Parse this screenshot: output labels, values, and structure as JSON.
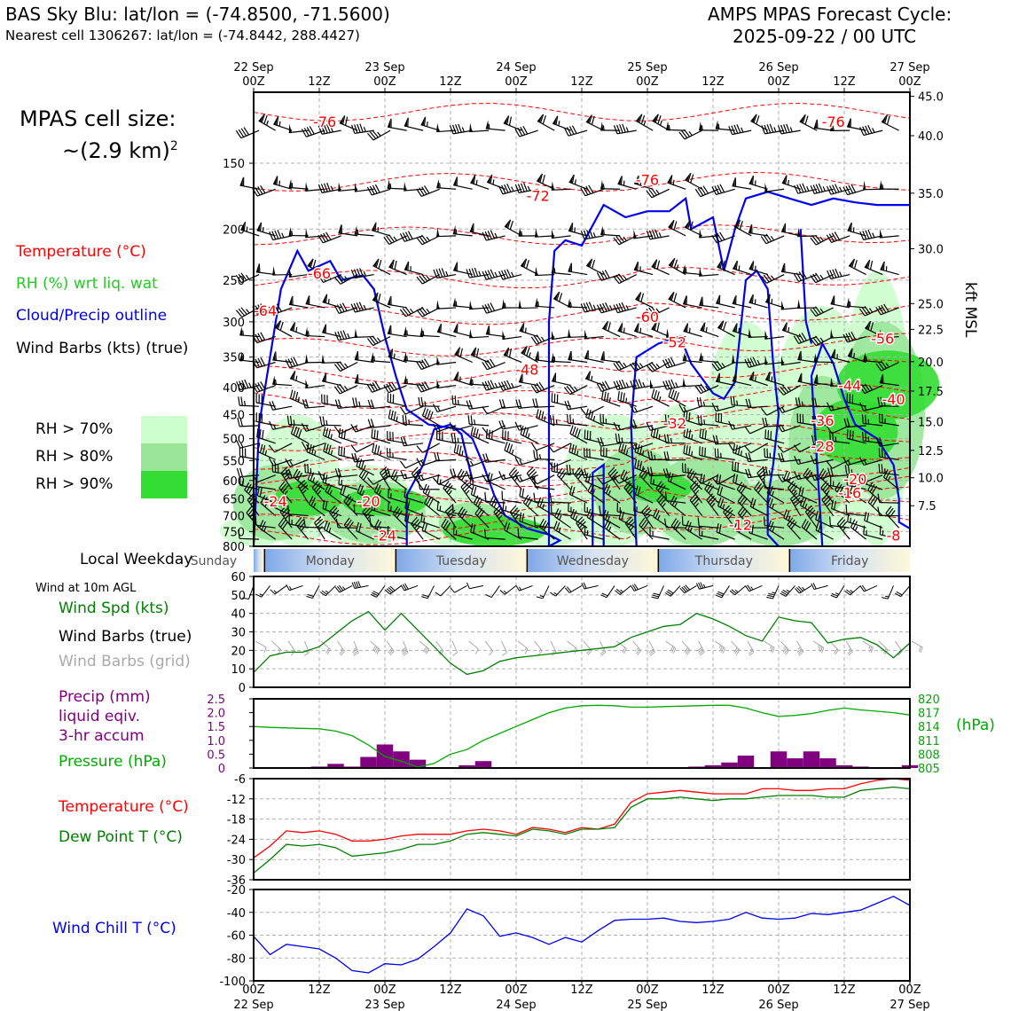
{
  "header": {
    "site_line": "BAS Sky Blu: lat/lon = (-74.8500, -71.5600)",
    "cell_line": "Nearest cell 1306267: lat/lon = (-74.8442, 288.4427)",
    "forecast_title": "AMPS MPAS Forecast Cycle:",
    "forecast_cycle": "2025-09-22 / 00 UTC"
  },
  "sidebar": {
    "cell_size_label": "MPAS cell size:",
    "cell_size_value": "~(2.9 km)",
    "cell_size_exp": "2",
    "legend_temperature": "Temperature (°C)",
    "legend_rh": "RH (%) wrt liq. wat",
    "legend_cloud": "Cloud/Precip outline",
    "legend_wind": "Wind Barbs (kts) (true)",
    "rh_levels": [
      {
        "label": "RH > 70%",
        "color": "#ccffcc"
      },
      {
        "label": "RH > 80%",
        "color": "#99e699"
      },
      {
        "label": "RH > 90%",
        "color": "#33dd33"
      }
    ],
    "weekday_title": "Local Weekday",
    "wind10_title": "Wind at 10m AGL",
    "wind_spd_label": "Wind Spd (kts)",
    "wind_barbs_true_label": "Wind Barbs (true)",
    "wind_barbs_grid_label": "Wind Barbs (grid)",
    "precip_label_1": "Precip (mm)",
    "precip_label_2": "liquid eqiv.",
    "precip_label_3": "3-hr accum",
    "pressure_label": "Pressure (hPa)",
    "pressure_unit": "(hPa)",
    "temp_label": "Temperature (°C)",
    "dew_label": "Dew Point T (°C)",
    "windchill_label": "Wind Chill T (°C)",
    "kft_label": "kft MSL"
  },
  "colors": {
    "temperature": "#ff0000",
    "rh": "#22bb22",
    "cloud": "#0000ee",
    "wind": "#000000",
    "grid_barbs": "#aaaaaa",
    "precip": "#800080",
    "pressure": "#00aa00",
    "dewpoint": "#008000",
    "windchill": "#0000ee"
  },
  "chart_data": [
    {
      "name": "time-height",
      "type": "heatmap",
      "top_axis_ticks": [
        {
          "line1": "22 Sep",
          "line2": "00Z",
          "hour": 0
        },
        {
          "line1": "",
          "line2": "12Z",
          "hour": 12
        },
        {
          "line1": "23 Sep",
          "line2": "00Z",
          "hour": 24
        },
        {
          "line1": "",
          "line2": "12Z",
          "hour": 36
        },
        {
          "line1": "24 Sep",
          "line2": "00Z",
          "hour": 48
        },
        {
          "line1": "",
          "line2": "12Z",
          "hour": 60
        },
        {
          "line1": "25 Sep",
          "line2": "00Z",
          "hour": 72
        },
        {
          "line1": "",
          "line2": "12Z",
          "hour": 84
        },
        {
          "line1": "26 Sep",
          "line2": "00Z",
          "hour": 96
        },
        {
          "line1": "",
          "line2": "12Z",
          "hour": 108
        },
        {
          "line1": "27 Sep",
          "line2": "00Z",
          "hour": 120
        }
      ],
      "xlim_hours": [
        0,
        120
      ],
      "pressure_ticks": [
        150,
        200,
        250,
        300,
        350,
        400,
        450,
        500,
        550,
        600,
        650,
        700,
        750,
        800
      ],
      "ylim_pressure_hpa": [
        110,
        800
      ],
      "height_ticks_kft": [
        "45.0",
        "40.0",
        "35.0",
        "30.0",
        "25.0",
        "22.5",
        "20.0",
        "17.5",
        "15.0",
        "12.5",
        "10.0",
        "7.5"
      ],
      "height_tick_pressure": [
        112,
        133,
        171,
        218,
        277,
        310,
        357,
        406,
        464,
        526,
        593,
        670
      ],
      "temp_labels": [
        {
          "text": "-76",
          "hour": 13,
          "p": 128
        },
        {
          "text": "-72",
          "hour": 52,
          "p": 177
        },
        {
          "text": "-76",
          "hour": 72,
          "p": 165
        },
        {
          "text": "-76",
          "hour": 106,
          "p": 128
        },
        {
          "text": "-66",
          "hour": 12,
          "p": 248
        },
        {
          "text": "-64",
          "hour": 0,
          "p": 292
        },
        {
          "text": "-60",
          "hour": 72,
          "p": 300
        },
        {
          "text": "-52",
          "hour": 77,
          "p": 335
        },
        {
          "text": "-48",
          "hour": 50,
          "p": 378
        },
        {
          "text": "-56",
          "hour": 115,
          "p": 330
        },
        {
          "text": "-44",
          "hour": 109,
          "p": 405
        },
        {
          "text": "-40",
          "hour": 117,
          "p": 430
        },
        {
          "text": "-32",
          "hour": 77,
          "p": 478
        },
        {
          "text": "-36",
          "hour": 104,
          "p": 472
        },
        {
          "text": "-28",
          "hour": 104,
          "p": 528
        },
        {
          "text": "-20",
          "hour": 110,
          "p": 610
        },
        {
          "text": "-24",
          "hour": 4,
          "p": 672
        },
        {
          "text": "-20",
          "hour": 21,
          "p": 672
        },
        {
          "text": "-16",
          "hour": 109,
          "p": 648
        },
        {
          "text": "-12",
          "hour": 89,
          "p": 745
        },
        {
          "text": "-24",
          "hour": 24,
          "p": 780
        },
        {
          "text": "-8",
          "hour": 117,
          "p": 780
        }
      ]
    },
    {
      "name": "local-weekday",
      "type": "table",
      "days": [
        "Sunday",
        "Monday",
        "Tuesday",
        "Wednesday",
        "Thursday",
        "Friday"
      ],
      "day_start_hours": [
        -6,
        2,
        26,
        50,
        74,
        98
      ]
    },
    {
      "name": "wind-10m",
      "type": "line",
      "title": "Wind at 10m AGL",
      "ylim": [
        0,
        60
      ],
      "yticks": [
        0,
        10,
        20,
        30,
        40,
        50,
        60
      ],
      "x_hours": [
        0,
        3,
        6,
        9,
        12,
        15,
        18,
        21,
        24,
        27,
        30,
        33,
        36,
        39,
        42,
        45,
        48,
        51,
        54,
        57,
        60,
        63,
        66,
        69,
        72,
        75,
        78,
        81,
        84,
        87,
        90,
        93,
        96,
        99,
        102,
        105,
        108,
        111,
        114,
        117,
        120
      ],
      "wind_speed_kts": [
        8,
        17,
        19,
        19,
        22,
        29,
        36,
        41,
        31,
        40,
        31,
        22,
        13,
        7,
        9,
        14,
        16,
        17,
        18,
        19,
        20,
        21,
        22,
        27,
        30,
        33,
        34,
        40,
        37,
        33,
        28,
        25,
        38,
        36,
        35,
        24,
        26,
        27,
        23,
        16,
        24
      ]
    },
    {
      "name": "precip-pressure",
      "type": "bar",
      "precip_ylim": [
        0,
        2.5
      ],
      "precip_yticks": [
        "0",
        "0.5",
        "1.0",
        "1.5",
        "2.0",
        "2.5"
      ],
      "pressure_ylim": [
        805,
        820
      ],
      "pressure_yticks": [
        "805",
        "808",
        "811",
        "814",
        "817",
        "820"
      ],
      "x_hours": [
        0,
        3,
        6,
        9,
        12,
        15,
        18,
        21,
        24,
        27,
        30,
        33,
        36,
        39,
        42,
        45,
        48,
        51,
        54,
        57,
        60,
        63,
        66,
        69,
        72,
        75,
        78,
        81,
        84,
        87,
        90,
        93,
        96,
        99,
        102,
        105,
        108,
        111,
        114,
        117,
        120
      ],
      "precip_mm": [
        0,
        0,
        0,
        0,
        0.05,
        0.15,
        0.05,
        0.4,
        0.85,
        0.6,
        0.3,
        0,
        0,
        0.1,
        0.25,
        0,
        0,
        0,
        0,
        0,
        0,
        0,
        0,
        0,
        0,
        0,
        0,
        0.05,
        0.1,
        0.2,
        0.45,
        0,
        0.6,
        0.35,
        0.6,
        0.35,
        0.1,
        0.05,
        0,
        0,
        0.1
      ],
      "pressure_hpa": [
        814,
        813.8,
        813.7,
        813.6,
        813.5,
        813,
        812,
        810,
        807.5,
        806.5,
        805.2,
        806,
        808,
        809,
        811,
        812.5,
        814,
        815.5,
        817,
        818,
        818.5,
        818.6,
        818.5,
        818.2,
        818.2,
        818.3,
        818.4,
        818.5,
        818.6,
        818.6,
        818,
        817,
        816.2,
        816.4,
        816.8,
        817.5,
        818,
        817.6,
        817.3,
        817,
        816.5
      ]
    },
    {
      "name": "temp-dewpoint",
      "type": "line",
      "ylim": [
        -36,
        -6
      ],
      "yticks": [
        -36,
        -30,
        -24,
        -18,
        -12,
        -6
      ],
      "x_hours": [
        0,
        3,
        6,
        9,
        12,
        15,
        18,
        21,
        24,
        27,
        30,
        33,
        36,
        39,
        42,
        45,
        48,
        51,
        54,
        57,
        60,
        63,
        66,
        69,
        72,
        75,
        78,
        81,
        84,
        87,
        90,
        93,
        96,
        99,
        102,
        105,
        108,
        111,
        114,
        117,
        120
      ],
      "temperature_c": [
        -29.5,
        -26,
        -21.5,
        -22,
        -21.5,
        -22.5,
        -24.5,
        -24.5,
        -24,
        -23,
        -22.5,
        -22.5,
        -22.5,
        -21.5,
        -21,
        -21.5,
        -22.5,
        -20.5,
        -21,
        -22,
        -20.5,
        -21,
        -19.5,
        -13,
        -10.5,
        -10,
        -9.5,
        -10,
        -10.5,
        -10.5,
        -10.5,
        -9,
        -9,
        -9.5,
        -9.5,
        -9,
        -9,
        -7.5,
        -6.5,
        -6,
        -6.5
      ],
      "dewpoint_c": [
        -34,
        -30,
        -25.5,
        -26,
        -25.5,
        -26.5,
        -29,
        -28.5,
        -28,
        -27,
        -25.5,
        -25.5,
        -24.5,
        -22.5,
        -22,
        -22.5,
        -23,
        -21,
        -21.5,
        -22.5,
        -21,
        -21,
        -20.5,
        -14.5,
        -12,
        -12,
        -11.5,
        -12,
        -12.5,
        -12,
        -12,
        -11.5,
        -11,
        -11,
        -11,
        -11.5,
        -11.5,
        -9.5,
        -9,
        -8.5,
        -9
      ]
    },
    {
      "name": "wind-chill",
      "type": "line",
      "ylim": [
        -100,
        -20
      ],
      "yticks": [
        -100,
        -80,
        -60,
        -40,
        -20
      ],
      "x_hours": [
        0,
        3,
        6,
        9,
        12,
        15,
        18,
        21,
        24,
        27,
        30,
        33,
        36,
        39,
        42,
        45,
        48,
        51,
        54,
        57,
        60,
        63,
        66,
        69,
        72,
        75,
        78,
        81,
        84,
        87,
        90,
        93,
        96,
        99,
        102,
        105,
        108,
        111,
        114,
        117,
        120
      ],
      "wind_chill_c": [
        -61,
        -77,
        -68,
        -70,
        -72,
        -80,
        -91,
        -93,
        -85,
        -86,
        -81,
        -70,
        -58,
        -37,
        -43,
        -61,
        -58,
        -62,
        -68,
        -62,
        -66,
        -56,
        -47,
        -46,
        -46,
        -45,
        -48,
        -49,
        -48,
        -46,
        -40,
        -45,
        -46,
        -45,
        -41,
        -42,
        -40,
        -38,
        -32,
        -26,
        -34
      ],
      "bottom_axis_ticks": [
        {
          "line1": "00Z",
          "line2": "22 Sep",
          "hour": 0
        },
        {
          "line1": "12Z",
          "line2": "",
          "hour": 12
        },
        {
          "line1": "00Z",
          "line2": "23 Sep",
          "hour": 24
        },
        {
          "line1": "12Z",
          "line2": "",
          "hour": 36
        },
        {
          "line1": "00Z",
          "line2": "24 Sep",
          "hour": 48
        },
        {
          "line1": "12Z",
          "line2": "",
          "hour": 60
        },
        {
          "line1": "00Z",
          "line2": "25 Sep",
          "hour": 72
        },
        {
          "line1": "12Z",
          "line2": "",
          "hour": 84
        },
        {
          "line1": "00Z",
          "line2": "26 Sep",
          "hour": 96
        },
        {
          "line1": "12Z",
          "line2": "",
          "hour": 108
        },
        {
          "line1": "00Z",
          "line2": "27 Sep",
          "hour": 120
        }
      ]
    }
  ]
}
